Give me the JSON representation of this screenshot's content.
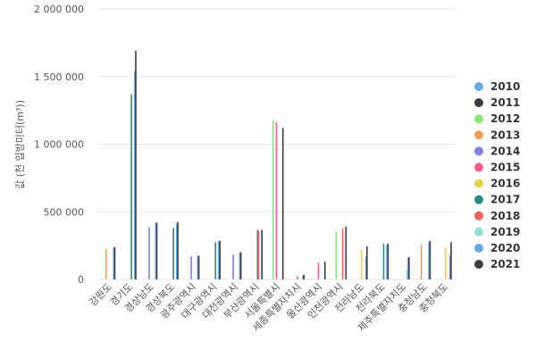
{
  "chart_data": {
    "type": "bar",
    "ylabel": "값 (천 입방미터(m³))",
    "ylim": [
      0,
      2000000
    ],
    "yticks": [
      {
        "value": 0,
        "label": "0"
      },
      {
        "value": 500000,
        "label": "500 000"
      },
      {
        "value": 1000000,
        "label": "1 000 000"
      },
      {
        "value": 1500000,
        "label": "1 500 000"
      },
      {
        "value": 2000000,
        "label": "2 000 000"
      }
    ],
    "grid": true,
    "legend_position": "right",
    "categories": [
      "강원도",
      "경기도",
      "경상남도",
      "경상북도",
      "광주광역시",
      "대구광역시",
      "대전광역시",
      "부산광역시",
      "서울특별시",
      "세종특별자치시",
      "울산광역시",
      "인천광역시",
      "전라남도",
      "전라북도",
      "제주특별자치도",
      "충청남도",
      "충청북도"
    ],
    "series": [
      {
        "name": "2010",
        "color": "#6aa7e8",
        "values": [
          null,
          null,
          null,
          null,
          null,
          null,
          null,
          null,
          null,
          null,
          null,
          null,
          null,
          null,
          null,
          null,
          null
        ]
      },
      {
        "name": "2011",
        "color": "#3b3b45",
        "values": [
          null,
          null,
          null,
          null,
          null,
          null,
          null,
          null,
          null,
          null,
          null,
          null,
          null,
          null,
          null,
          null,
          null
        ]
      },
      {
        "name": "2012",
        "color": "#8fe07a",
        "values": [
          null,
          null,
          null,
          null,
          null,
          null,
          null,
          null,
          1180000,
          null,
          null,
          350000,
          null,
          null,
          null,
          null,
          null
        ]
      },
      {
        "name": "2013",
        "color": "#f3a15a",
        "values": [
          225000,
          null,
          null,
          null,
          null,
          null,
          null,
          null,
          null,
          null,
          null,
          null,
          null,
          null,
          null,
          255000,
          null
        ]
      },
      {
        "name": "2014",
        "color": "#7f7fe6",
        "values": [
          null,
          null,
          385000,
          null,
          170000,
          null,
          185000,
          null,
          null,
          null,
          null,
          null,
          null,
          null,
          null,
          null,
          null
        ]
      },
      {
        "name": "2015",
        "color": "#f0608a",
        "values": [
          null,
          null,
          null,
          null,
          null,
          null,
          null,
          null,
          1160000,
          25000,
          125000,
          null,
          null,
          null,
          null,
          null,
          null
        ]
      },
      {
        "name": "2016",
        "color": "#e8d34e",
        "values": [
          null,
          null,
          null,
          null,
          null,
          null,
          null,
          null,
          null,
          null,
          null,
          null,
          215000,
          null,
          null,
          null,
          235000
        ]
      },
      {
        "name": "2017",
        "color": "#2a8c83",
        "values": [
          null,
          1370000,
          null,
          380000,
          null,
          275000,
          null,
          365000,
          null,
          null,
          null,
          null,
          null,
          265000,
          null,
          null,
          null
        ]
      },
      {
        "name": "2018",
        "color": "#f06262",
        "values": [
          null,
          null,
          null,
          null,
          null,
          null,
          null,
          360000,
          null,
          null,
          null,
          375000,
          null,
          null,
          null,
          null,
          null
        ]
      },
      {
        "name": "2019",
        "color": "#8fe3d6",
        "values": [
          null,
          null,
          null,
          null,
          null,
          null,
          null,
          null,
          null,
          null,
          null,
          null,
          null,
          null,
          70000,
          null,
          null
        ]
      },
      {
        "name": "2020",
        "color": "#6aa7e8",
        "values": [
          235000,
          1540000,
          415000,
          410000,
          175000,
          285000,
          200000,
          null,
          null,
          30000,
          null,
          null,
          170000,
          255000,
          160000,
          275000,
          180000
        ]
      },
      {
        "name": "2021",
        "color": "#3b3b45",
        "values": [
          240000,
          1690000,
          420000,
          425000,
          175000,
          285000,
          200000,
          365000,
          1120000,
          35000,
          130000,
          390000,
          245000,
          265000,
          165000,
          285000,
          275000
        ]
      }
    ]
  }
}
